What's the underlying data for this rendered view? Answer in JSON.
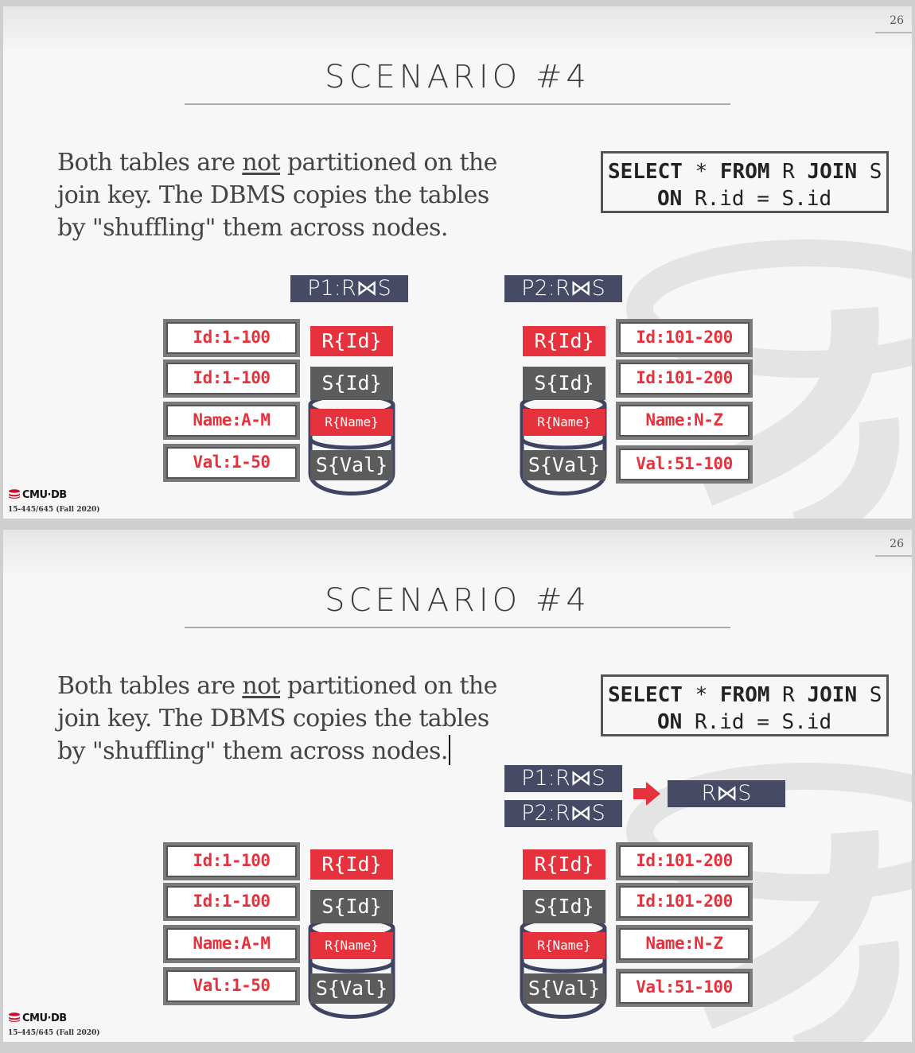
{
  "slides": [
    {
      "page_number": "26",
      "title": "SCENARIO #4",
      "body": {
        "part1": "Both tables are ",
        "underlined": "not",
        "part2": " partitioned on the join key. The DBMS copies the tables by \"shuffling\" them across nodes."
      },
      "sql": {
        "kw1": "SELECT",
        "t1": " * ",
        "kw2": "FROM",
        "t2": " R ",
        "kw3": "JOIN",
        "t3": " S",
        "kw4": "ON",
        "t4": " R.id = S.id"
      },
      "labels": {
        "p1": "P1:R⋈S",
        "p2": "P2:R⋈S"
      },
      "node1": {
        "partitions": [
          "Id:1-100",
          "Id:1-100",
          "Name:A-M",
          "Val:1-50"
        ],
        "cylinder": [
          "R{Id}",
          "S{Id}",
          "R{Name}",
          "S{Val}"
        ]
      },
      "node2": {
        "partitions": [
          "Id:101-200",
          "Id:101-200",
          "Name:N-Z",
          "Val:51-100"
        ],
        "cylinder": [
          "R{Id}",
          "S{Id}",
          "R{Name}",
          "S{Val}"
        ]
      },
      "footer": {
        "logo": "CMU·DB",
        "course": "15-445/645 (Fall 2020)"
      }
    },
    {
      "page_number": "26",
      "title": "SCENARIO #4",
      "body": {
        "part1": "Both tables are ",
        "underlined": "not",
        "part2": " partitioned on the join key. The DBMS copies the tables by \"shuffling\" them across nodes."
      },
      "sql": {
        "kw1": "SELECT",
        "t1": " * ",
        "kw2": "FROM",
        "t2": " R ",
        "kw3": "JOIN",
        "t3": " S",
        "kw4": "ON",
        "t4": " R.id = S.id"
      },
      "labels": {
        "p1": "P1:R⋈S",
        "p2": "P2:R⋈S",
        "result": "R⋈S"
      },
      "node1": {
        "partitions": [
          "Id:1-100",
          "Id:1-100",
          "Name:A-M",
          "Val:1-50"
        ],
        "cylinder": [
          "R{Id}",
          "S{Id}",
          "R{Name}",
          "S{Val}"
        ]
      },
      "node2": {
        "partitions": [
          "Id:101-200",
          "Id:101-200",
          "Name:N-Z",
          "Val:51-100"
        ],
        "cylinder": [
          "R{Id}",
          "S{Id}",
          "R{Name}",
          "S{Val}"
        ]
      },
      "footer": {
        "logo": "CMU·DB",
        "course": "15-445/645 (Fall 2020)"
      }
    }
  ],
  "colors": {
    "accent_red": "#e5323c",
    "label_navy": "#464a64",
    "cylinder_grey": "#5c5c5c",
    "cylinder_outline": "#3f4463"
  },
  "icons": {
    "logo": "database-logo-icon",
    "arrow": "right-arrow-icon"
  }
}
